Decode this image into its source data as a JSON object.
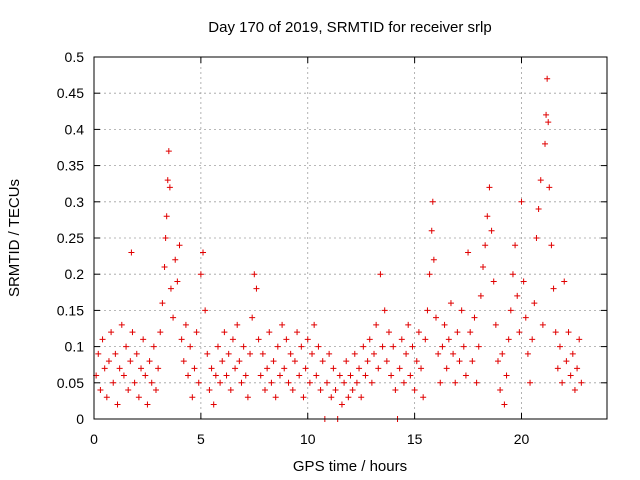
{
  "chart_data": {
    "type": "scatter",
    "title": "Day 170 of 2019, SRMTID for receiver srlp",
    "xlabel": "GPS time / hours",
    "ylabel": "SRMTID / TECUs",
    "xlim": [
      0,
      24
    ],
    "ylim": [
      0,
      0.5
    ],
    "xticks": [
      0,
      5,
      10,
      15,
      20
    ],
    "xtick_labels": [
      "0",
      "5",
      "10",
      "15",
      "20"
    ],
    "yticks": [
      0,
      0.05,
      0.1,
      0.15,
      0.2,
      0.25,
      0.3,
      0.35,
      0.4,
      0.45,
      0.5
    ],
    "ytick_labels": [
      "0",
      "0.05",
      "0.1",
      "0.15",
      "0.2",
      "0.25",
      "0.3",
      "0.35",
      "0.4",
      "0.45",
      "0.5"
    ],
    "grid": true,
    "legend": "none",
    "marker": "+",
    "color": "#e00000",
    "series": [
      {
        "values": [
          [
            0.1,
            0.06
          ],
          [
            0.2,
            0.09
          ],
          [
            0.3,
            0.04
          ],
          [
            0.4,
            0.11
          ],
          [
            0.5,
            0.07
          ],
          [
            0.6,
            0.03
          ],
          [
            0.7,
            0.08
          ],
          [
            0.8,
            0.12
          ],
          [
            0.9,
            0.05
          ],
          [
            1.0,
            0.09
          ],
          [
            1.1,
            0.02
          ],
          [
            1.2,
            0.07
          ],
          [
            1.3,
            0.13
          ],
          [
            1.4,
            0.06
          ],
          [
            1.5,
            0.1
          ],
          [
            1.6,
            0.04
          ],
          [
            1.7,
            0.08
          ],
          [
            1.75,
            0.23
          ],
          [
            1.8,
            0.12
          ],
          [
            1.9,
            0.05
          ],
          [
            2.0,
            0.09
          ],
          [
            2.1,
            0.03
          ],
          [
            2.2,
            0.07
          ],
          [
            2.3,
            0.11
          ],
          [
            2.4,
            0.06
          ],
          [
            2.5,
            0.02
          ],
          [
            2.6,
            0.08
          ],
          [
            2.7,
            0.05
          ],
          [
            2.8,
            0.1
          ],
          [
            2.9,
            0.04
          ],
          [
            3.0,
            0.07
          ],
          [
            3.1,
            0.12
          ],
          [
            3.2,
            0.16
          ],
          [
            3.3,
            0.21
          ],
          [
            3.35,
            0.25
          ],
          [
            3.4,
            0.28
          ],
          [
            3.45,
            0.33
          ],
          [
            3.5,
            0.37
          ],
          [
            3.55,
            0.32
          ],
          [
            3.6,
            0.18
          ],
          [
            3.7,
            0.14
          ],
          [
            3.8,
            0.22
          ],
          [
            3.9,
            0.19
          ],
          [
            4.0,
            0.24
          ],
          [
            4.1,
            0.11
          ],
          [
            4.2,
            0.08
          ],
          [
            4.3,
            0.13
          ],
          [
            4.4,
            0.06
          ],
          [
            4.5,
            0.1
          ],
          [
            4.6,
            0.03
          ],
          [
            4.7,
            0.07
          ],
          [
            4.8,
            0.12
          ],
          [
            4.9,
            0.05
          ],
          [
            5.0,
            0.2
          ],
          [
            5.1,
            0.23
          ],
          [
            5.2,
            0.15
          ],
          [
            5.3,
            0.09
          ],
          [
            5.4,
            0.04
          ],
          [
            5.5,
            0.07
          ],
          [
            5.6,
            0.02
          ],
          [
            5.7,
            0.06
          ],
          [
            5.8,
            0.1
          ],
          [
            5.9,
            0.05
          ],
          [
            6.0,
            0.08
          ],
          [
            6.1,
            0.12
          ],
          [
            6.2,
            0.06
          ],
          [
            6.3,
            0.09
          ],
          [
            6.4,
            0.04
          ],
          [
            6.5,
            0.11
          ],
          [
            6.6,
            0.07
          ],
          [
            6.7,
            0.13
          ],
          [
            6.8,
            0.08
          ],
          [
            6.9,
            0.05
          ],
          [
            7.0,
            0.1
          ],
          [
            7.1,
            0.06
          ],
          [
            7.2,
            0.03
          ],
          [
            7.3,
            0.09
          ],
          [
            7.4,
            0.14
          ],
          [
            7.5,
            0.2
          ],
          [
            7.6,
            0.18
          ],
          [
            7.7,
            0.11
          ],
          [
            7.8,
            0.06
          ],
          [
            7.9,
            0.09
          ],
          [
            8.0,
            0.04
          ],
          [
            8.1,
            0.07
          ],
          [
            8.2,
            0.12
          ],
          [
            8.3,
            0.05
          ],
          [
            8.4,
            0.08
          ],
          [
            8.5,
            0.03
          ],
          [
            8.6,
            0.1
          ],
          [
            8.7,
            0.06
          ],
          [
            8.8,
            0.13
          ],
          [
            8.9,
            0.07
          ],
          [
            9.0,
            0.11
          ],
          [
            9.1,
            0.05
          ],
          [
            9.2,
            0.09
          ],
          [
            9.3,
            0.04
          ],
          [
            9.4,
            0.08
          ],
          [
            9.5,
            0.12
          ],
          [
            9.6,
            0.06
          ],
          [
            9.7,
            0.1
          ],
          [
            9.8,
            0.03
          ],
          [
            9.9,
            0.07
          ],
          [
            10.0,
            0.11
          ],
          [
            10.1,
            0.05
          ],
          [
            10.2,
            0.09
          ],
          [
            10.3,
            0.13
          ],
          [
            10.4,
            0.06
          ],
          [
            10.5,
            0.1
          ],
          [
            10.6,
            0.04
          ],
          [
            10.7,
            0.08
          ],
          [
            10.8,
            0.0
          ],
          [
            10.9,
            0.05
          ],
          [
            11.0,
            0.09
          ],
          [
            11.1,
            0.03
          ],
          [
            11.2,
            0.07
          ],
          [
            11.3,
            0.04
          ],
          [
            11.4,
            0.0
          ],
          [
            11.5,
            0.06
          ],
          [
            11.6,
            0.02
          ],
          [
            11.7,
            0.05
          ],
          [
            11.8,
            0.08
          ],
          [
            11.9,
            0.03
          ],
          [
            12.0,
            0.06
          ],
          [
            12.1,
            0.04
          ],
          [
            12.2,
            0.09
          ],
          [
            12.3,
            0.05
          ],
          [
            12.4,
            0.07
          ],
          [
            12.5,
            0.03
          ],
          [
            12.6,
            0.1
          ],
          [
            12.7,
            0.06
          ],
          [
            12.8,
            0.08
          ],
          [
            12.9,
            0.11
          ],
          [
            13.0,
            0.05
          ],
          [
            13.1,
            0.09
          ],
          [
            13.2,
            0.13
          ],
          [
            13.3,
            0.07
          ],
          [
            13.4,
            0.2
          ],
          [
            13.5,
            0.1
          ],
          [
            13.6,
            0.15
          ],
          [
            13.7,
            0.08
          ],
          [
            13.8,
            0.12
          ],
          [
            13.9,
            0.06
          ],
          [
            14.0,
            0.1
          ],
          [
            14.1,
            0.04
          ],
          [
            14.2,
            0.0
          ],
          [
            14.3,
            0.07
          ],
          [
            14.4,
            0.11
          ],
          [
            14.5,
            0.05
          ],
          [
            14.6,
            0.09
          ],
          [
            14.7,
            0.13
          ],
          [
            14.8,
            0.06
          ],
          [
            14.9,
            0.1
          ],
          [
            15.0,
            0.04
          ],
          [
            15.1,
            0.08
          ],
          [
            15.2,
            0.12
          ],
          [
            15.3,
            0.07
          ],
          [
            15.4,
            0.03
          ],
          [
            15.5,
            0.11
          ],
          [
            15.6,
            0.15
          ],
          [
            15.7,
            0.2
          ],
          [
            15.8,
            0.26
          ],
          [
            15.85,
            0.3
          ],
          [
            15.9,
            0.22
          ],
          [
            16.0,
            0.14
          ],
          [
            16.1,
            0.09
          ],
          [
            16.2,
            0.05
          ],
          [
            16.3,
            0.1
          ],
          [
            16.4,
            0.13
          ],
          [
            16.5,
            0.07
          ],
          [
            16.6,
            0.11
          ],
          [
            16.7,
            0.16
          ],
          [
            16.8,
            0.09
          ],
          [
            16.9,
            0.05
          ],
          [
            17.0,
            0.12
          ],
          [
            17.1,
            0.08
          ],
          [
            17.2,
            0.15
          ],
          [
            17.3,
            0.1
          ],
          [
            17.4,
            0.06
          ],
          [
            17.5,
            0.23
          ],
          [
            17.6,
            0.12
          ],
          [
            17.7,
            0.08
          ],
          [
            17.8,
            0.14
          ],
          [
            17.9,
            0.05
          ],
          [
            18.0,
            0.1
          ],
          [
            18.1,
            0.17
          ],
          [
            18.2,
            0.21
          ],
          [
            18.3,
            0.24
          ],
          [
            18.4,
            0.28
          ],
          [
            18.5,
            0.32
          ],
          [
            18.6,
            0.26
          ],
          [
            18.7,
            0.19
          ],
          [
            18.8,
            0.13
          ],
          [
            18.9,
            0.08
          ],
          [
            19.0,
            0.04
          ],
          [
            19.1,
            0.09
          ],
          [
            19.2,
            0.02
          ],
          [
            19.3,
            0.06
          ],
          [
            19.4,
            0.11
          ],
          [
            19.5,
            0.15
          ],
          [
            19.6,
            0.2
          ],
          [
            19.7,
            0.24
          ],
          [
            19.8,
            0.17
          ],
          [
            19.9,
            0.12
          ],
          [
            20.0,
            0.3
          ],
          [
            20.1,
            0.19
          ],
          [
            20.2,
            0.14
          ],
          [
            20.3,
            0.09
          ],
          [
            20.4,
            0.05
          ],
          [
            20.5,
            0.11
          ],
          [
            20.6,
            0.16
          ],
          [
            20.7,
            0.25
          ],
          [
            20.8,
            0.29
          ],
          [
            20.9,
            0.33
          ],
          [
            21.0,
            0.13
          ],
          [
            21.1,
            0.38
          ],
          [
            21.15,
            0.42
          ],
          [
            21.2,
            0.47
          ],
          [
            21.25,
            0.41
          ],
          [
            21.3,
            0.32
          ],
          [
            21.4,
            0.24
          ],
          [
            21.5,
            0.18
          ],
          [
            21.6,
            0.12
          ],
          [
            21.7,
            0.07
          ],
          [
            21.8,
            0.1
          ],
          [
            21.9,
            0.05
          ],
          [
            22.0,
            0.19
          ],
          [
            22.1,
            0.08
          ],
          [
            22.2,
            0.12
          ],
          [
            22.3,
            0.06
          ],
          [
            22.4,
            0.09
          ],
          [
            22.5,
            0.04
          ],
          [
            22.6,
            0.07
          ],
          [
            22.7,
            0.11
          ],
          [
            22.8,
            0.05
          ]
        ]
      }
    ]
  }
}
